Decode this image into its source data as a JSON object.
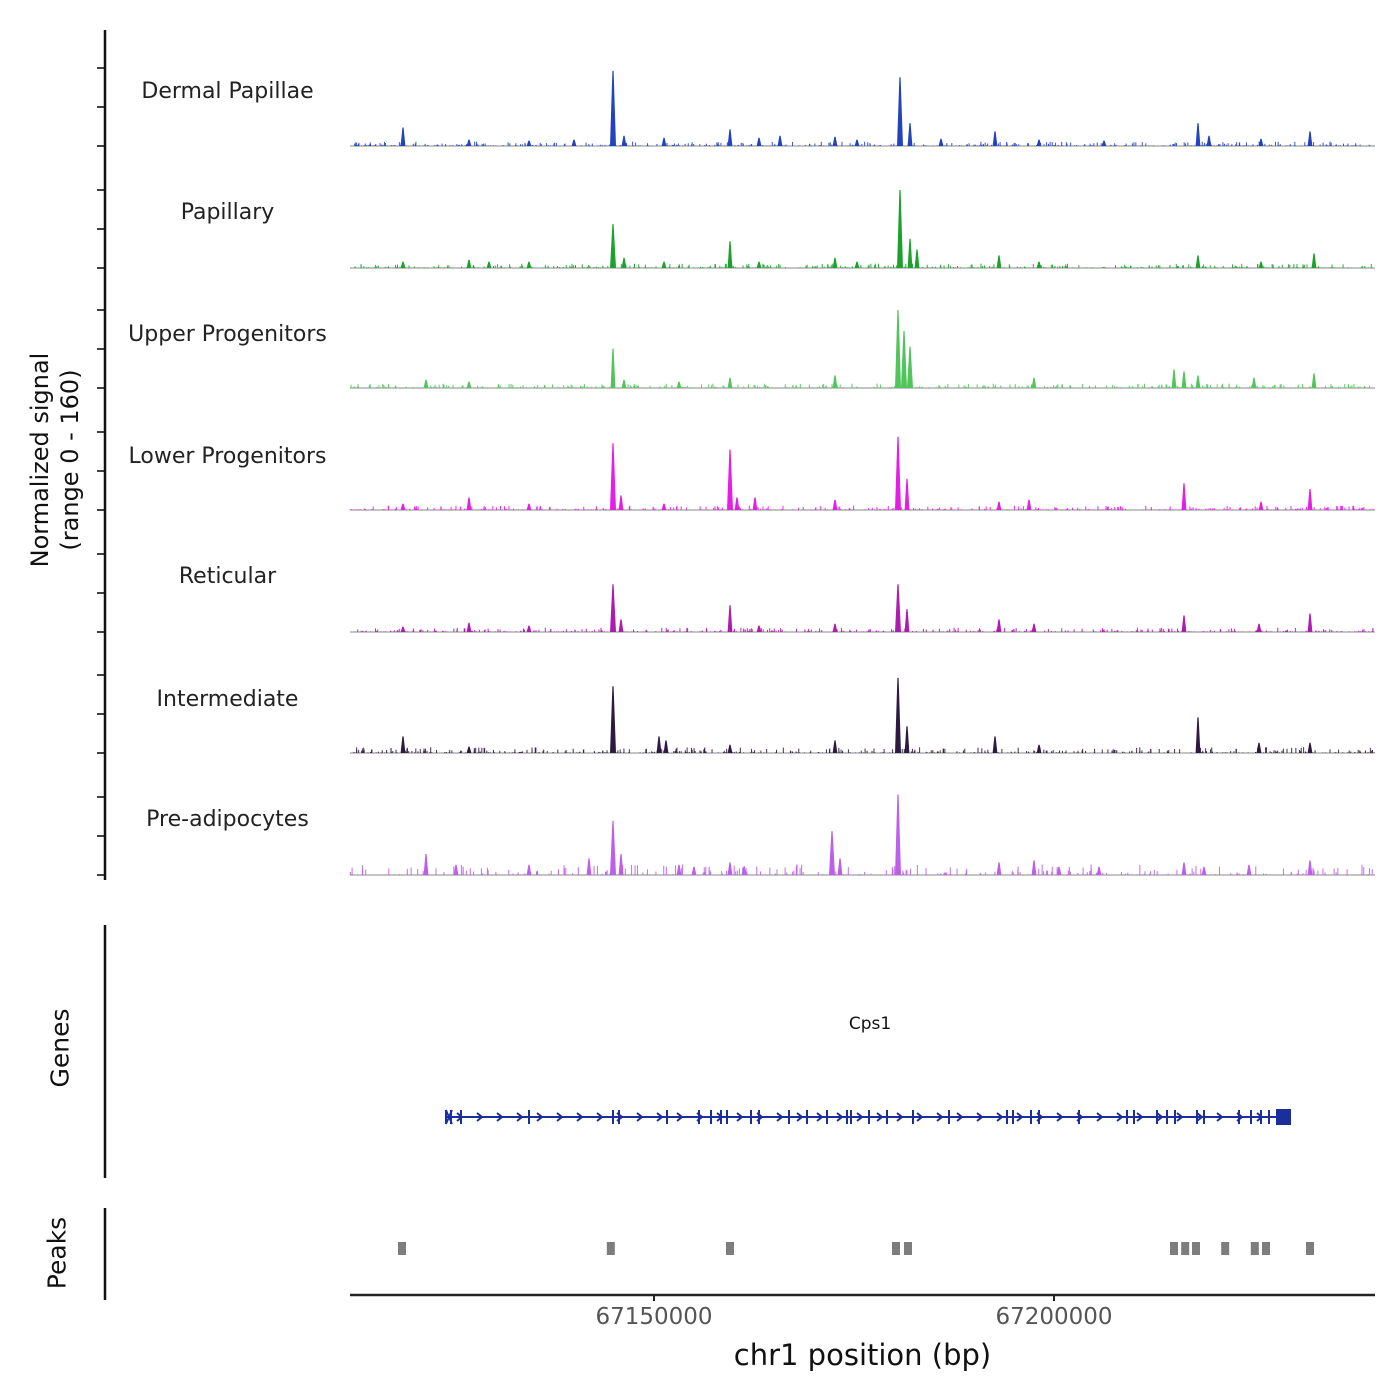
{
  "chart_data": {
    "type": "area",
    "description": "Genome browser signal tracks over a chr1 locus",
    "y_axis": {
      "label_line1": "Normalized signal",
      "label_line2": "(range 0 - 160)",
      "range": [
        0,
        160
      ]
    },
    "x_axis": {
      "title": "chr1 position (bp)",
      "xlim": [
        67112000,
        67240125
      ],
      "ticks": [
        {
          "value": 67150000,
          "label": "67150000"
        },
        {
          "value": 67200000,
          "label": "67200000"
        }
      ]
    },
    "tracks": [
      {
        "label": "Dermal Papillae",
        "color": "#2343bd",
        "noise": {
          "count": 480,
          "max": 9
        },
        "peaks": [
          [
            67118625,
            38
          ],
          [
            67126875,
            13
          ],
          [
            67134375,
            11
          ],
          [
            67140000,
            13
          ],
          [
            67144875,
            154
          ],
          [
            67146250,
            21
          ],
          [
            67151250,
            17
          ],
          [
            67159500,
            34
          ],
          [
            67163125,
            17
          ],
          [
            67165750,
            21
          ],
          [
            67172625,
            19
          ],
          [
            67175375,
            13
          ],
          [
            67180750,
            141
          ],
          [
            67182000,
            47
          ],
          [
            67185875,
            15
          ],
          [
            67192625,
            30
          ],
          [
            67198125,
            13
          ],
          [
            67206250,
            11
          ],
          [
            67218000,
            47
          ],
          [
            67219375,
            21
          ],
          [
            67225875,
            15
          ],
          [
            67232000,
            30
          ]
        ]
      },
      {
        "label": "Papillary",
        "color": "#1da12e",
        "noise": {
          "count": 480,
          "max": 9
        },
        "peaks": [
          [
            67118625,
            13
          ],
          [
            67126875,
            17
          ],
          [
            67129375,
            13
          ],
          [
            67134375,
            13
          ],
          [
            67144875,
            90
          ],
          [
            67146250,
            21
          ],
          [
            67151250,
            13
          ],
          [
            67159500,
            55
          ],
          [
            67163125,
            13
          ],
          [
            67172625,
            21
          ],
          [
            67175375,
            13
          ],
          [
            67180750,
            160
          ],
          [
            67182000,
            60
          ],
          [
            67182875,
            38
          ],
          [
            67193125,
            26
          ],
          [
            67198125,
            13
          ],
          [
            67218000,
            26
          ],
          [
            67225875,
            13
          ],
          [
            67232500,
            30
          ]
        ]
      },
      {
        "label": "Upper Progenitors",
        "color": "#52c45c",
        "noise": {
          "count": 480,
          "max": 9
        },
        "peaks": [
          [
            67121500,
            17
          ],
          [
            67126875,
            13
          ],
          [
            67144875,
            81
          ],
          [
            67146250,
            17
          ],
          [
            67153125,
            13
          ],
          [
            67159500,
            21
          ],
          [
            67172625,
            26
          ],
          [
            67180500,
            160
          ],
          [
            67181250,
            117
          ],
          [
            67182000,
            85
          ],
          [
            67197500,
            21
          ],
          [
            67215000,
            38
          ],
          [
            67216250,
            34
          ],
          [
            67218000,
            26
          ],
          [
            67225000,
            21
          ],
          [
            67232500,
            30
          ]
        ]
      },
      {
        "label": "Lower Progenitors",
        "color": "#e41ee4",
        "noise": {
          "count": 480,
          "max": 9
        },
        "peaks": [
          [
            67118625,
            13
          ],
          [
            67126875,
            26
          ],
          [
            67134375,
            13
          ],
          [
            67144875,
            137
          ],
          [
            67145875,
            30
          ],
          [
            67151250,
            13
          ],
          [
            67159500,
            124
          ],
          [
            67160375,
            26
          ],
          [
            67162625,
            26
          ],
          [
            67172625,
            21
          ],
          [
            67180500,
            150
          ],
          [
            67181625,
            64
          ],
          [
            67193125,
            17
          ],
          [
            67196875,
            21
          ],
          [
            67216250,
            55
          ],
          [
            67225875,
            17
          ],
          [
            67232000,
            43
          ]
        ]
      },
      {
        "label": "Reticular",
        "color": "#ad1cad",
        "noise": {
          "count": 480,
          "max": 9
        },
        "peaks": [
          [
            67118625,
            11
          ],
          [
            67126875,
            19
          ],
          [
            67134375,
            13
          ],
          [
            67144875,
            98
          ],
          [
            67145875,
            26
          ],
          [
            67159500,
            55
          ],
          [
            67163125,
            13
          ],
          [
            67172625,
            17
          ],
          [
            67180500,
            98
          ],
          [
            67181625,
            47
          ],
          [
            67193125,
            26
          ],
          [
            67197500,
            17
          ],
          [
            67216250,
            34
          ],
          [
            67225625,
            17
          ],
          [
            67232000,
            38
          ]
        ]
      },
      {
        "label": "Intermediate",
        "color": "#2e1a40",
        "noise": {
          "count": 480,
          "max": 12
        },
        "peaks": [
          [
            67118625,
            34
          ],
          [
            67126875,
            13
          ],
          [
            67144875,
            137
          ],
          [
            67150625,
            34
          ],
          [
            67151500,
            26
          ],
          [
            67159500,
            17
          ],
          [
            67172625,
            26
          ],
          [
            67180500,
            154
          ],
          [
            67181625,
            55
          ],
          [
            67192625,
            34
          ],
          [
            67198125,
            17
          ],
          [
            67218000,
            73
          ],
          [
            67225625,
            21
          ],
          [
            67232000,
            21
          ]
        ]
      },
      {
        "label": "Pre-adipocytes",
        "color": "#bd5fe8",
        "noise": {
          "count": 300,
          "max": 22
        },
        "peaks": [
          [
            67121500,
            43
          ],
          [
            67125250,
            21
          ],
          [
            67134375,
            21
          ],
          [
            67141875,
            34
          ],
          [
            67144875,
            111
          ],
          [
            67145875,
            43
          ],
          [
            67153125,
            21
          ],
          [
            67155000,
            17
          ],
          [
            67159500,
            26
          ],
          [
            67161250,
            17
          ],
          [
            67172250,
            90
          ],
          [
            67173250,
            34
          ],
          [
            67180500,
            165
          ],
          [
            67193125,
            26
          ],
          [
            67197500,
            30
          ],
          [
            67200625,
            17
          ],
          [
            67205625,
            17
          ],
          [
            67216250,
            26
          ],
          [
            67218750,
            17
          ],
          [
            67224375,
            21
          ],
          [
            67232000,
            30
          ]
        ]
      }
    ],
    "genes": {
      "label": "Genes",
      "items": [
        {
          "name": "Cps1",
          "start": 67124000,
          "end": 67229625,
          "strand": "+",
          "color": "#1c2d9c",
          "exons": [
            67124000,
            67124625,
            67125875,
            67134375,
            67144875,
            67145625,
            67151625,
            67155625,
            67157125,
            67158375,
            67159125,
            67162125,
            67163125,
            67166875,
            67169125,
            67171625,
            67174125,
            67174625,
            67176875,
            67179125,
            67182375,
            67186875,
            67194125,
            67194875,
            67197125,
            67198125,
            67203125,
            67209125,
            67210000,
            67212875,
            67214125,
            67215125,
            67217875,
            67218750,
            67223125,
            67224625,
            67225875,
            67226875
          ],
          "end_block": [
            67227750,
            67229625
          ]
        }
      ]
    },
    "peaks_track": {
      "label": "Peaks",
      "color": "#7d7d7d",
      "intervals": [
        [
          67118000,
          67119000
        ],
        [
          67144100,
          67145100
        ],
        [
          67159000,
          67160000
        ],
        [
          67179750,
          67180750
        ],
        [
          67181250,
          67182250
        ],
        [
          67214500,
          67215500
        ],
        [
          67215900,
          67216900
        ],
        [
          67217250,
          67218250
        ],
        [
          67220900,
          67221900
        ],
        [
          67224600,
          67225600
        ],
        [
          67226000,
          67227000
        ],
        [
          67231500,
          67232500
        ]
      ]
    }
  }
}
